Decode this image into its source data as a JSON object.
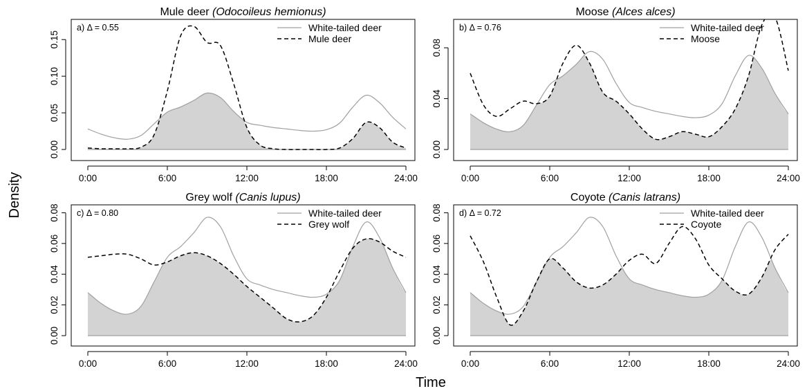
{
  "figure": {
    "ylabel": "Density",
    "xlabel": "Time"
  },
  "chart_data": [
    {
      "type": "line",
      "panel_label": "a) Δ = 0.55",
      "title_plain": "Mule deer ",
      "title_italic": "(Odocoileus hemionus)",
      "xlabel": "",
      "ylabel": "",
      "xlim": [
        0,
        24
      ],
      "ylim": [
        0,
        0.17
      ],
      "x_ticks": [
        0,
        6,
        12,
        18,
        24
      ],
      "x_tick_labels": [
        "0:00",
        "6:00",
        "12:00",
        "18:00",
        "24:00"
      ],
      "y_ticks": [
        0,
        0.05,
        0.1,
        0.15
      ],
      "y_tick_labels": [
        "0.00",
        "0.05",
        "0.10",
        "0.15"
      ],
      "legend_position": "top-right",
      "overlap_shaded": true,
      "x": [
        0,
        1,
        2,
        3,
        4,
        5,
        6,
        7,
        8,
        9,
        10,
        11,
        12,
        13,
        14,
        15,
        16,
        17,
        18,
        19,
        20,
        21,
        22,
        23,
        24
      ],
      "series": [
        {
          "name": "White-tailed deer",
          "style": "solid",
          "color": "#a0a0a0",
          "values": [
            0.028,
            0.021,
            0.016,
            0.014,
            0.019,
            0.035,
            0.051,
            0.058,
            0.067,
            0.077,
            0.071,
            0.052,
            0.037,
            0.033,
            0.03,
            0.028,
            0.026,
            0.025,
            0.027,
            0.036,
            0.058,
            0.074,
            0.064,
            0.044,
            0.028
          ]
        },
        {
          "name": "Mule deer",
          "style": "dashed",
          "color": "#000000",
          "values": [
            0.002,
            0.001,
            0.001,
            0.001,
            0.003,
            0.02,
            0.08,
            0.155,
            0.168,
            0.146,
            0.142,
            0.09,
            0.03,
            0.006,
            0.001,
            0.0,
            0.0,
            0.0,
            0.0,
            0.002,
            0.015,
            0.037,
            0.03,
            0.01,
            0.002
          ]
        }
      ]
    },
    {
      "type": "line",
      "panel_label": "b) Δ = 0.76",
      "title_plain": "Moose ",
      "title_italic": "(Alces alces)",
      "xlabel": "",
      "ylabel": "",
      "xlim": [
        0,
        24
      ],
      "ylim": [
        0,
        0.098
      ],
      "x_ticks": [
        0,
        6,
        12,
        18,
        24
      ],
      "x_tick_labels": [
        "0:00",
        "6:00",
        "12:00",
        "18:00",
        "24:00"
      ],
      "y_ticks": [
        0,
        0.04,
        0.08
      ],
      "y_tick_labels": [
        "0.00",
        "0.04",
        "0.08"
      ],
      "legend_position": "top-right",
      "overlap_shaded": true,
      "x": [
        0,
        1,
        2,
        3,
        4,
        5,
        6,
        7,
        8,
        9,
        10,
        11,
        12,
        13,
        14,
        15,
        16,
        17,
        18,
        19,
        20,
        21,
        22,
        23,
        24
      ],
      "series": [
        {
          "name": "White-tailed deer",
          "style": "solid",
          "color": "#a0a0a0",
          "values": [
            0.028,
            0.021,
            0.016,
            0.014,
            0.019,
            0.035,
            0.051,
            0.058,
            0.067,
            0.077,
            0.071,
            0.052,
            0.037,
            0.033,
            0.03,
            0.028,
            0.026,
            0.025,
            0.027,
            0.036,
            0.058,
            0.074,
            0.064,
            0.044,
            0.028
          ]
        },
        {
          "name": "Moose",
          "style": "dashed",
          "color": "#000000",
          "values": [
            0.06,
            0.035,
            0.026,
            0.032,
            0.038,
            0.036,
            0.042,
            0.068,
            0.082,
            0.068,
            0.045,
            0.038,
            0.028,
            0.016,
            0.008,
            0.01,
            0.014,
            0.012,
            0.01,
            0.018,
            0.032,
            0.058,
            0.098,
            0.104,
            0.062
          ]
        }
      ]
    },
    {
      "type": "line",
      "panel_label": "c) Δ = 0.80",
      "title_plain": "Grey wolf ",
      "title_italic": "(Canis lupus)",
      "xlabel": "",
      "ylabel": "",
      "xlim": [
        0,
        24
      ],
      "ylim": [
        0,
        0.082
      ],
      "x_ticks": [
        0,
        6,
        12,
        18,
        24
      ],
      "x_tick_labels": [
        "0:00",
        "6:00",
        "12:00",
        "18:00",
        "24:00"
      ],
      "y_ticks": [
        0,
        0.02,
        0.04,
        0.06,
        0.08
      ],
      "y_tick_labels": [
        "0.00",
        "0.02",
        "0.04",
        "0.06",
        "0.08"
      ],
      "legend_position": "top-right",
      "overlap_shaded": true,
      "x": [
        0,
        1,
        2,
        3,
        4,
        5,
        6,
        7,
        8,
        9,
        10,
        11,
        12,
        13,
        14,
        15,
        16,
        17,
        18,
        19,
        20,
        21,
        22,
        23,
        24
      ],
      "series": [
        {
          "name": "White-tailed deer",
          "style": "solid",
          "color": "#a0a0a0",
          "values": [
            0.028,
            0.021,
            0.016,
            0.014,
            0.019,
            0.035,
            0.051,
            0.058,
            0.067,
            0.077,
            0.071,
            0.052,
            0.037,
            0.033,
            0.03,
            0.028,
            0.026,
            0.025,
            0.027,
            0.036,
            0.058,
            0.074,
            0.064,
            0.044,
            0.028
          ]
        },
        {
          "name": "Grey wolf",
          "style": "dashed",
          "color": "#000000",
          "values": [
            0.051,
            0.052,
            0.053,
            0.053,
            0.05,
            0.046,
            0.048,
            0.052,
            0.054,
            0.052,
            0.047,
            0.04,
            0.032,
            0.025,
            0.018,
            0.011,
            0.009,
            0.013,
            0.025,
            0.042,
            0.057,
            0.063,
            0.061,
            0.055,
            0.051
          ]
        }
      ]
    },
    {
      "type": "line",
      "panel_label": "d) Δ = 0.72",
      "title_plain": "Coyote ",
      "title_italic": "(Canis latrans)",
      "xlabel": "",
      "ylabel": "",
      "xlim": [
        0,
        24
      ],
      "ylim": [
        0,
        0.082
      ],
      "x_ticks": [
        0,
        6,
        12,
        18,
        24
      ],
      "x_tick_labels": [
        "0:00",
        "6:00",
        "12:00",
        "18:00",
        "24:00"
      ],
      "y_ticks": [
        0,
        0.02,
        0.04,
        0.06,
        0.08
      ],
      "y_tick_labels": [
        "0.00",
        "0.02",
        "0.04",
        "0.06",
        "0.08"
      ],
      "legend_position": "top-right",
      "overlap_shaded": true,
      "x": [
        0,
        1,
        2,
        3,
        4,
        5,
        6,
        7,
        8,
        9,
        10,
        11,
        12,
        13,
        14,
        15,
        16,
        17,
        18,
        19,
        20,
        21,
        22,
        23,
        24
      ],
      "series": [
        {
          "name": "White-tailed deer",
          "style": "solid",
          "color": "#a0a0a0",
          "values": [
            0.028,
            0.021,
            0.016,
            0.014,
            0.019,
            0.035,
            0.051,
            0.058,
            0.067,
            0.077,
            0.071,
            0.052,
            0.037,
            0.033,
            0.03,
            0.028,
            0.026,
            0.025,
            0.027,
            0.036,
            0.058,
            0.074,
            0.064,
            0.044,
            0.028
          ]
        },
        {
          "name": "Coyote",
          "style": "dashed",
          "color": "#000000",
          "values": [
            0.065,
            0.048,
            0.025,
            0.007,
            0.016,
            0.035,
            0.05,
            0.044,
            0.035,
            0.031,
            0.033,
            0.04,
            0.049,
            0.053,
            0.047,
            0.06,
            0.071,
            0.063,
            0.046,
            0.037,
            0.029,
            0.027,
            0.038,
            0.056,
            0.066
          ]
        }
      ]
    }
  ]
}
